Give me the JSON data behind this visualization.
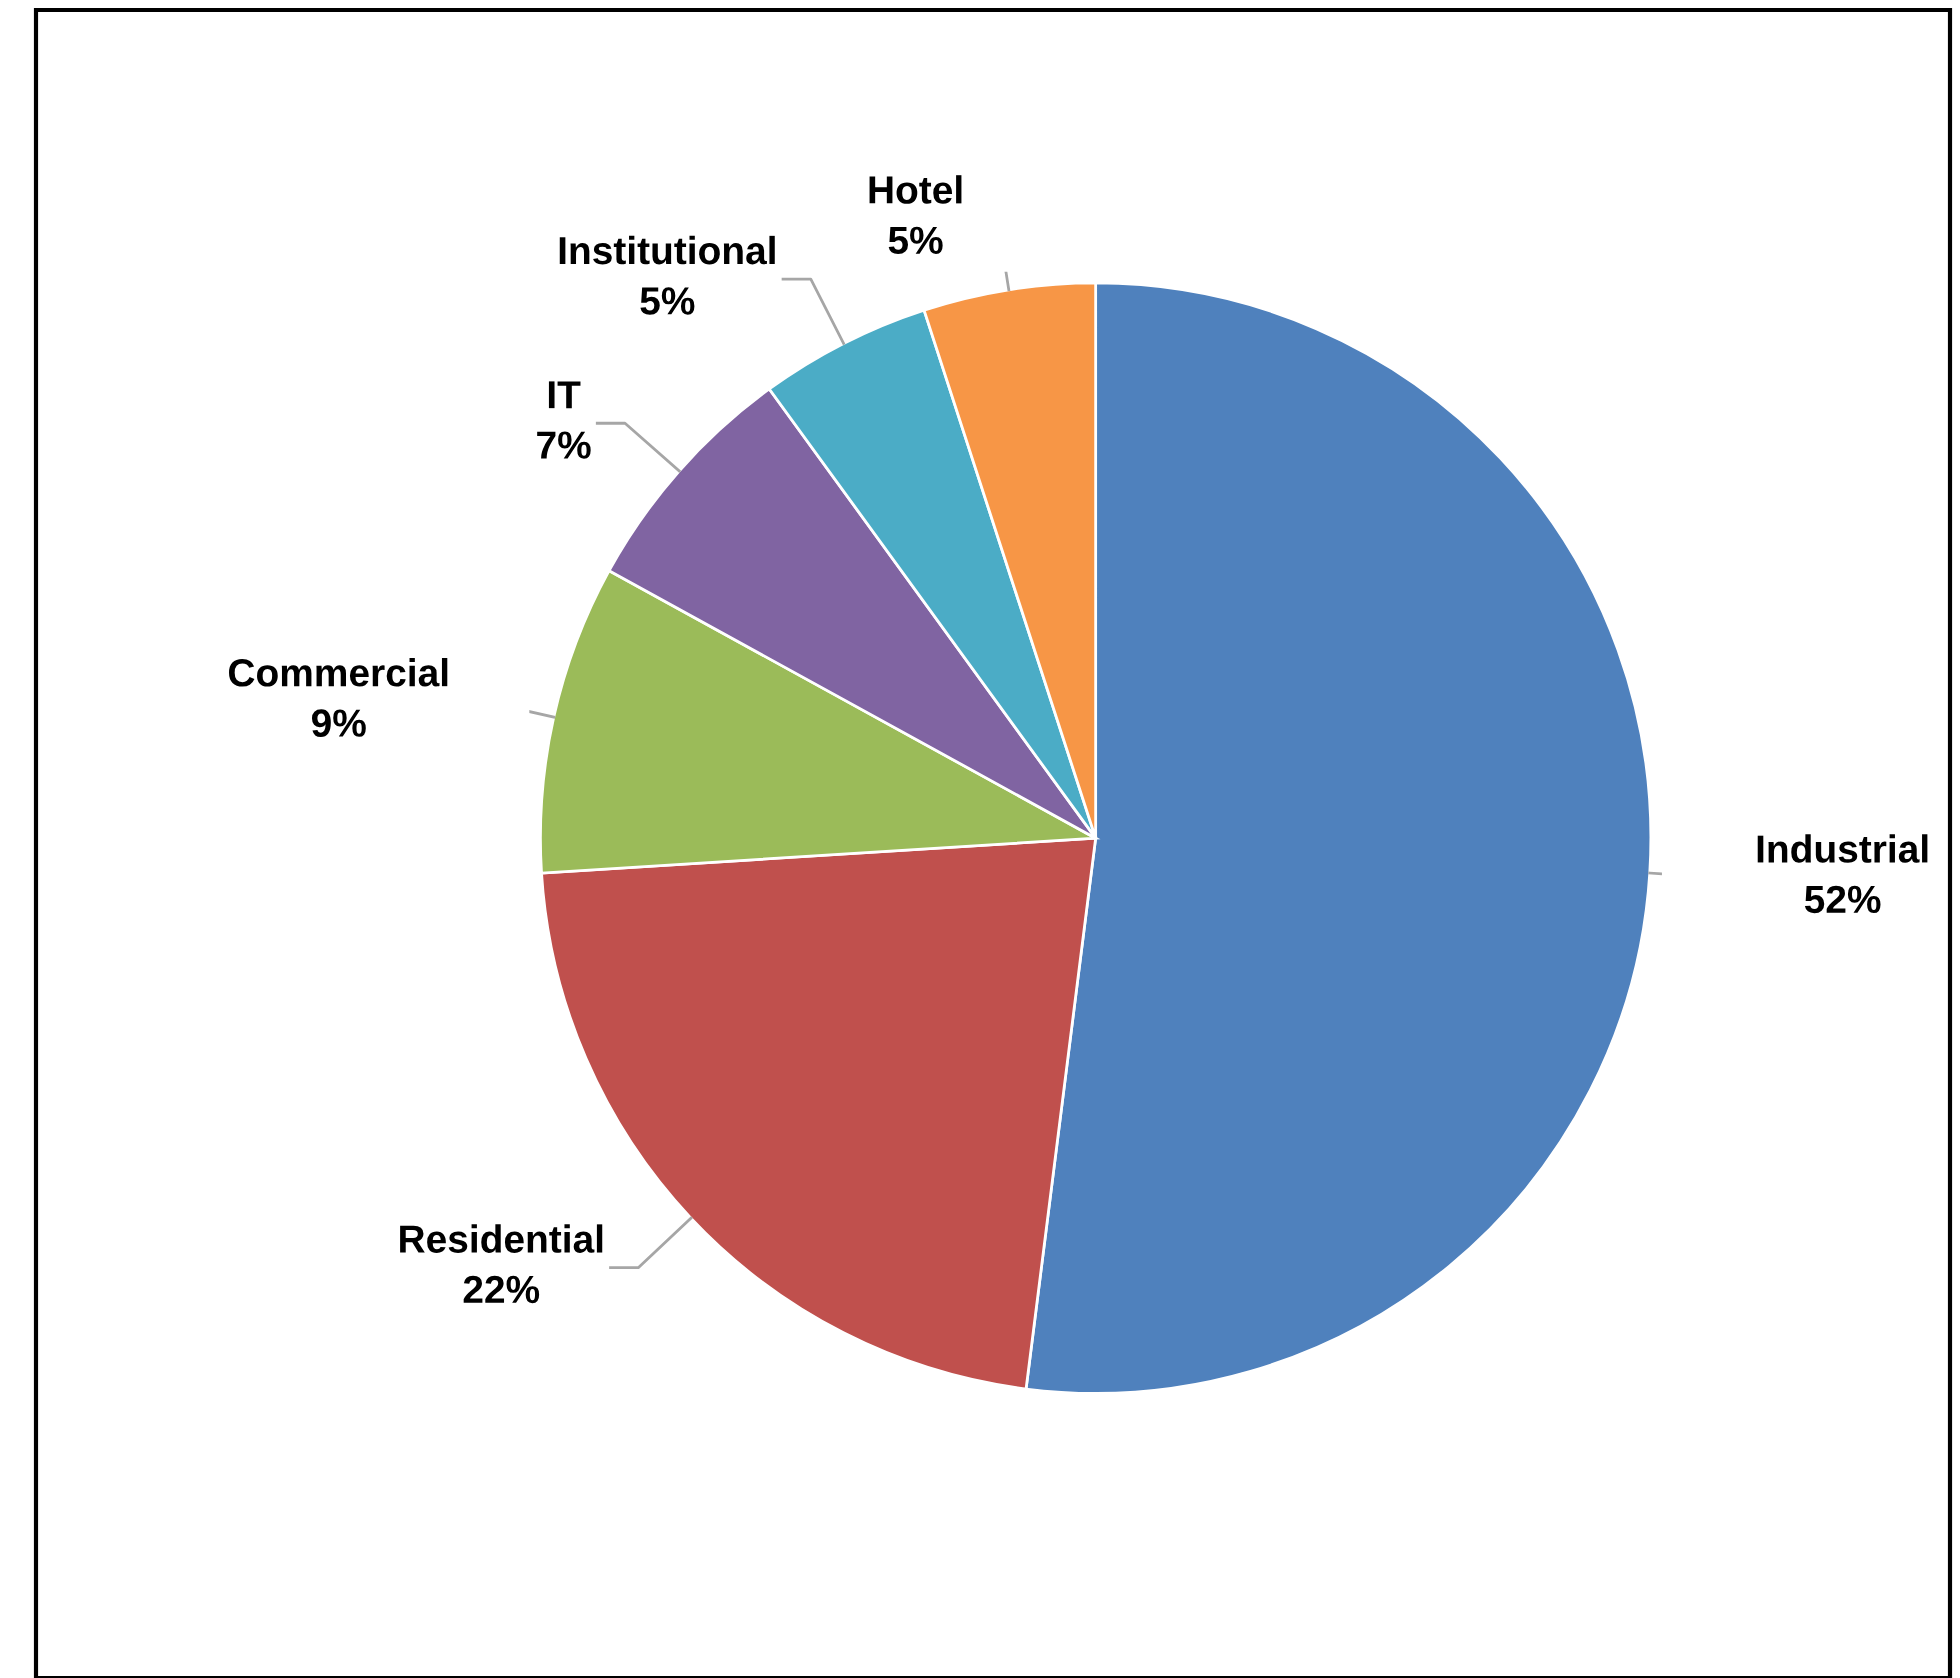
{
  "chart_data": {
    "type": "pie",
    "categories": [
      "Industrial",
      "Residential",
      "Commercial",
      "IT",
      "Institutional",
      "Hotel"
    ],
    "values": [
      52,
      22,
      9,
      7,
      5,
      5
    ],
    "value_labels": [
      "52%",
      "22%",
      "9%",
      "7%",
      "5%",
      "5%"
    ],
    "colors": [
      "#4f81bd",
      "#c0504d",
      "#9bbb59",
      "#8064a2",
      "#4bacc6",
      "#f79646"
    ],
    "legend": false
  }
}
